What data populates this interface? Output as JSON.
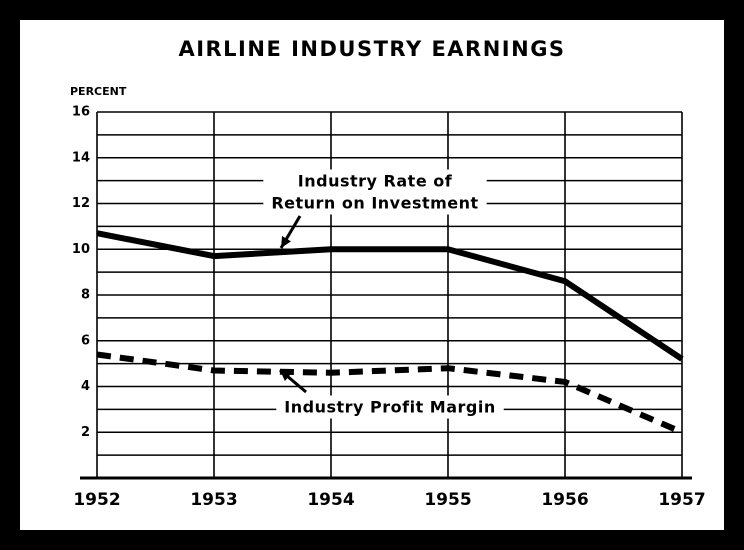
{
  "chart_data": {
    "type": "line",
    "title": "AIRLINE INDUSTRY EARNINGS",
    "ylabel": "PERCENT",
    "x": [
      1952,
      1953,
      1954,
      1955,
      1956,
      1957
    ],
    "xlim": [
      1952,
      1957
    ],
    "xticks": [
      1952,
      1953,
      1954,
      1955,
      1956,
      1957
    ],
    "ylim": [
      0,
      16
    ],
    "yticks": [
      2,
      4,
      6,
      8,
      10,
      12,
      14,
      16
    ],
    "minor_yticks": [
      0,
      1,
      3,
      5,
      7,
      9,
      11,
      13,
      15
    ],
    "grid": true,
    "series": [
      {
        "color": "#000000",
        "style": "solid",
        "values": [
          10.7,
          9.7,
          10.0,
          10.0,
          8.6,
          5.2
        ]
      },
      {
        "color": "#000000",
        "style": "dashed",
        "values": [
          5.4,
          4.7,
          4.6,
          4.8,
          4.2,
          2.0
        ]
      }
    ],
    "annotations": [
      {
        "lines": [
          "Industry Rate of",
          "Return on Investment"
        ]
      },
      {
        "lines": [
          "Industry Profit Margin"
        ]
      }
    ]
  }
}
